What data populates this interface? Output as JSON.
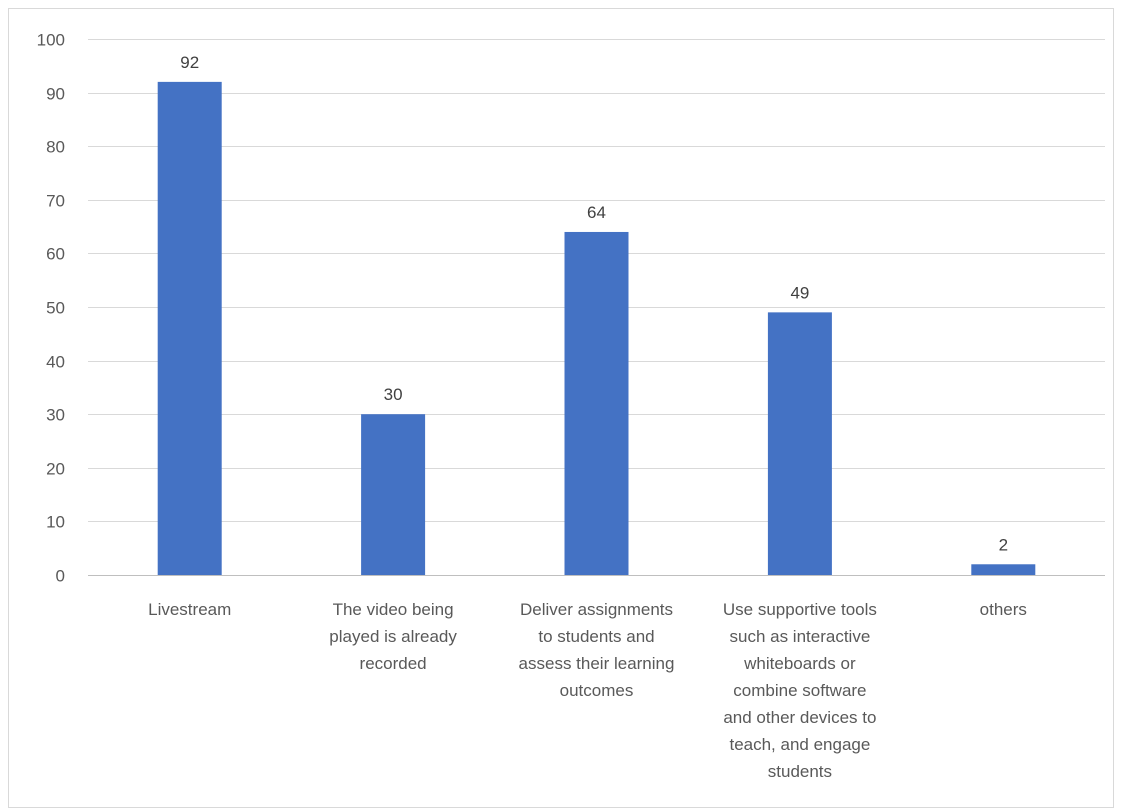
{
  "chart_data": {
    "type": "bar",
    "title": "",
    "xlabel": "",
    "ylabel": "",
    "categories": [
      "Livestream",
      "The video being played is already recorded",
      "Deliver assignments to students and assess their learning outcomes",
      "Use supportive tools such as interactive whiteboards or combine software and other devices to teach, and engage students",
      "others"
    ],
    "category_lines": [
      [
        "Livestream"
      ],
      [
        "The video being",
        "played is already",
        "recorded"
      ],
      [
        "Deliver assignments",
        "to students and",
        "assess their learning",
        "outcomes"
      ],
      [
        "Use supportive tools",
        "such as interactive",
        "whiteboards or",
        "combine software",
        "and other devices to",
        "teach, and engage",
        "students"
      ],
      [
        "others"
      ]
    ],
    "values": [
      92,
      30,
      64,
      49,
      2
    ],
    "ylim": [
      0,
      100
    ],
    "yticks": [
      0,
      10,
      20,
      30,
      40,
      50,
      60,
      70,
      80,
      90,
      100
    ],
    "grid": true,
    "legend": "none",
    "bar_color": "#4472C4",
    "grid_color": "#d9d9d9"
  }
}
